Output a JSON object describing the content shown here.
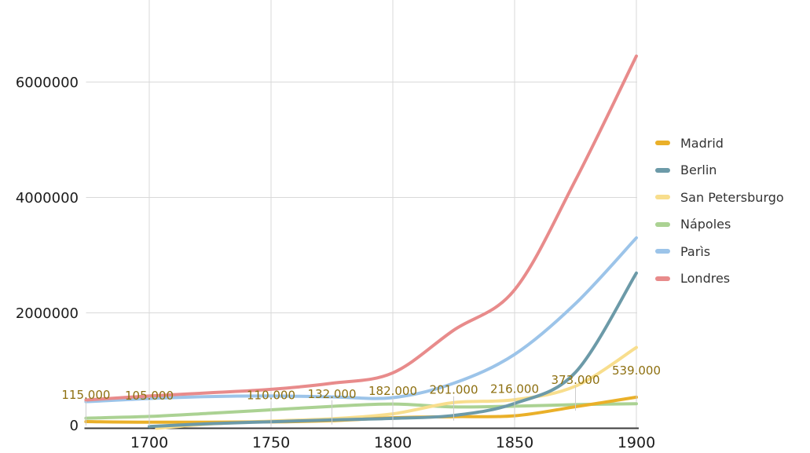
{
  "chart_data": {
    "type": "line",
    "title": "",
    "curve": "smooth",
    "grid": true,
    "legend_position": "right",
    "x_axis": {
      "range": [
        1674,
        1900
      ],
      "ticks": [
        {
          "value": 1700,
          "label": "1700"
        },
        {
          "value": 1750,
          "label": "1750"
        },
        {
          "value": 1800,
          "label": "1800"
        },
        {
          "value": 1850,
          "label": "1850"
        },
        {
          "value": 1900,
          "label": "1900"
        }
      ]
    },
    "y_axis": {
      "range": [
        0,
        7430000
      ],
      "ticks": [
        {
          "value": 0,
          "label": "0"
        },
        {
          "value": 2000000,
          "label": "2000000"
        },
        {
          "value": 4000000,
          "label": "4000000"
        },
        {
          "value": 6000000,
          "label": "6000000"
        }
      ]
    },
    "annotation_color": "#8E7011",
    "series": [
      {
        "name": "Madrid",
        "color": "#EAB029",
        "points": [
          {
            "x": 1674,
            "y": 115000,
            "label": "115.000"
          },
          {
            "x": 1700,
            "y": 105000,
            "label": "105.000"
          },
          {
            "x": 1750,
            "y": 110000,
            "label": "110.000"
          },
          {
            "x": 1775,
            "y": 132000,
            "label": "132.000"
          },
          {
            "x": 1800,
            "y": 182000,
            "label": "182.000"
          },
          {
            "x": 1825,
            "y": 201000,
            "label": "201.000"
          },
          {
            "x": 1850,
            "y": 216000,
            "label": "216.000"
          },
          {
            "x": 1875,
            "y": 373000,
            "label": "373.000"
          },
          {
            "x": 1900,
            "y": 539000,
            "label": "539.000"
          }
        ]
      },
      {
        "name": "Berlin",
        "color": "#6C9AA8",
        "points": [
          {
            "x": 1700,
            "y": 30000
          },
          {
            "x": 1725,
            "y": 80000
          },
          {
            "x": 1750,
            "y": 113000
          },
          {
            "x": 1775,
            "y": 145000
          },
          {
            "x": 1800,
            "y": 172000
          },
          {
            "x": 1825,
            "y": 222000
          },
          {
            "x": 1850,
            "y": 430000
          },
          {
            "x": 1875,
            "y": 970000
          },
          {
            "x": 1900,
            "y": 2690000
          }
        ]
      },
      {
        "name": "San Petersburgo",
        "color": "#F8DE8D",
        "points": [
          {
            "x": 1703,
            "y": 0
          },
          {
            "x": 1725,
            "y": 75000
          },
          {
            "x": 1750,
            "y": 125000
          },
          {
            "x": 1775,
            "y": 165000
          },
          {
            "x": 1800,
            "y": 250000
          },
          {
            "x": 1825,
            "y": 445000
          },
          {
            "x": 1850,
            "y": 495000
          },
          {
            "x": 1875,
            "y": 730000
          },
          {
            "x": 1900,
            "y": 1400000
          }
        ]
      },
      {
        "name": "Nápoles",
        "color": "#ABD293",
        "points": [
          {
            "x": 1674,
            "y": 175000
          },
          {
            "x": 1700,
            "y": 205000
          },
          {
            "x": 1725,
            "y": 260000
          },
          {
            "x": 1750,
            "y": 320000
          },
          {
            "x": 1775,
            "y": 380000
          },
          {
            "x": 1800,
            "y": 420000
          },
          {
            "x": 1825,
            "y": 370000
          },
          {
            "x": 1850,
            "y": 383000
          },
          {
            "x": 1875,
            "y": 410000
          },
          {
            "x": 1900,
            "y": 425000
          }
        ]
      },
      {
        "name": "Parìs",
        "color": "#9CC4E9",
        "points": [
          {
            "x": 1674,
            "y": 460000
          },
          {
            "x": 1700,
            "y": 515000
          },
          {
            "x": 1725,
            "y": 550000
          },
          {
            "x": 1750,
            "y": 560000
          },
          {
            "x": 1775,
            "y": 545000
          },
          {
            "x": 1800,
            "y": 530000
          },
          {
            "x": 1825,
            "y": 780000
          },
          {
            "x": 1850,
            "y": 1280000
          },
          {
            "x": 1875,
            "y": 2160000
          },
          {
            "x": 1900,
            "y": 3300000
          }
        ]
      },
      {
        "name": "Londres",
        "color": "#E88B8B",
        "points": [
          {
            "x": 1674,
            "y": 490000
          },
          {
            "x": 1700,
            "y": 560000
          },
          {
            "x": 1725,
            "y": 615000
          },
          {
            "x": 1750,
            "y": 675000
          },
          {
            "x": 1775,
            "y": 780000
          },
          {
            "x": 1800,
            "y": 960000
          },
          {
            "x": 1825,
            "y": 1700000
          },
          {
            "x": 1850,
            "y": 2400000
          },
          {
            "x": 1875,
            "y": 4300000
          },
          {
            "x": 1900,
            "y": 6450000
          }
        ]
      }
    ]
  }
}
